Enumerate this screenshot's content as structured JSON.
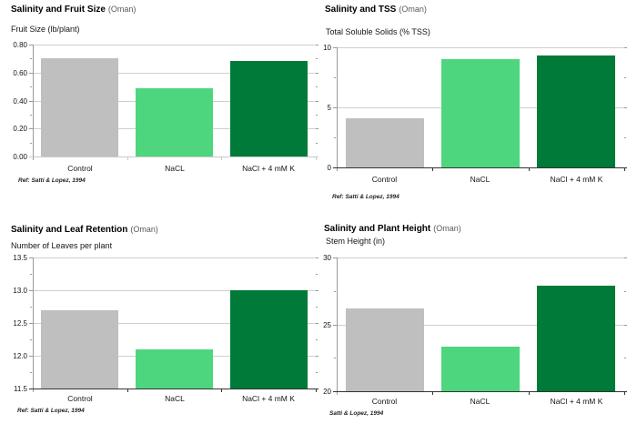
{
  "page": {
    "background": "#ffffff"
  },
  "colors": {
    "bar_control": "#bfbfbf",
    "bar_nacl": "#4ed67e",
    "bar_nacl_k": "#007a38",
    "gridline": "#cfcfcf",
    "title_suffix": "#595959"
  },
  "chart_data": [
    {
      "type": "bar",
      "title": "Salinity and Fruit Size",
      "title_suffix": "(Oman)",
      "ylabel": "Fruit Size (lb/plant)",
      "categories": [
        "Control",
        "NaCL",
        "NaCl + 4 mM K"
      ],
      "values": [
        0.7,
        0.49,
        0.68
      ],
      "bar_colors": [
        "#bfbfbf",
        "#4ed67e",
        "#007a38"
      ],
      "ylim": [
        0,
        0.8
      ],
      "yticks": [
        0,
        0.2,
        0.4,
        0.6,
        0.8
      ],
      "ytick_labels": [
        "0.00",
        "0.20",
        "0.40",
        "0.60",
        "0.80"
      ],
      "grid": true,
      "legend": "none",
      "ref": "Ref: Satti & Lopez, 1994"
    },
    {
      "type": "bar",
      "title": "Salinity and TSS",
      "title_suffix": "(Oman)",
      "ylabel": "Total Soluble Solids (% TSS)",
      "categories": [
        "Control",
        "NaCL",
        "NaCl + 4 mM K"
      ],
      "values": [
        4.1,
        9.0,
        9.3
      ],
      "bar_colors": [
        "#bfbfbf",
        "#4ed67e",
        "#007a38"
      ],
      "ylim": [
        0,
        10
      ],
      "yticks": [
        0,
        5,
        10
      ],
      "ytick_labels": [
        "0",
        "5",
        "10"
      ],
      "grid": true,
      "legend": "none",
      "ref": "Ref: Satti & Lopez, 1994"
    },
    {
      "type": "bar",
      "title": "Salinity and Leaf Retention",
      "title_suffix": "(Oman)",
      "ylabel": "Number of Leaves per plant",
      "categories": [
        "Control",
        "NaCL",
        "NaCl + 4 mM K"
      ],
      "values": [
        12.7,
        12.1,
        13.0
      ],
      "bar_colors": [
        "#bfbfbf",
        "#4ed67e",
        "#007a38"
      ],
      "ylim": [
        11.5,
        13.5
      ],
      "yticks": [
        11.5,
        12.0,
        12.5,
        13.0,
        13.5
      ],
      "ytick_labels": [
        "11.5",
        "12.0",
        "12.5",
        "13.0",
        "13.5"
      ],
      "grid": true,
      "legend": "none",
      "ref": "Ref: Satti & Lopez, 1994"
    },
    {
      "type": "bar",
      "title": "Salinity and Plant Height",
      "title_suffix": "(Oman)",
      "ylabel": "Stem Height (in)",
      "categories": [
        "Control",
        "NaCL",
        "NaCl + 4 mM K"
      ],
      "values": [
        26.2,
        23.3,
        27.9
      ],
      "bar_colors": [
        "#bfbfbf",
        "#4ed67e",
        "#007a38"
      ],
      "ylim": [
        20,
        30
      ],
      "yticks": [
        20,
        25,
        30
      ],
      "ytick_labels": [
        "20",
        "25",
        "30"
      ],
      "grid": true,
      "legend": "none",
      "ref": "Satti & Lopez, 1994"
    }
  ]
}
